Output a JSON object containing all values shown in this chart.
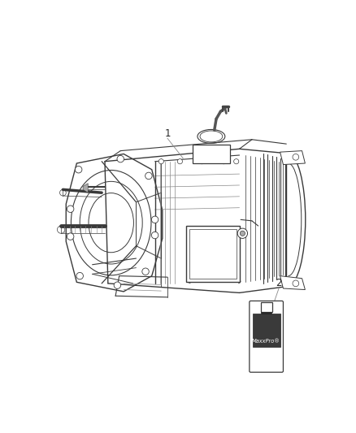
{
  "background_color": "#ffffff",
  "fig_width": 4.38,
  "fig_height": 5.33,
  "dpi": 100,
  "label1": "1",
  "label2": "2",
  "line_color": "#3a3a3a",
  "light_line": "#888888",
  "dark_fill": "#444444"
}
